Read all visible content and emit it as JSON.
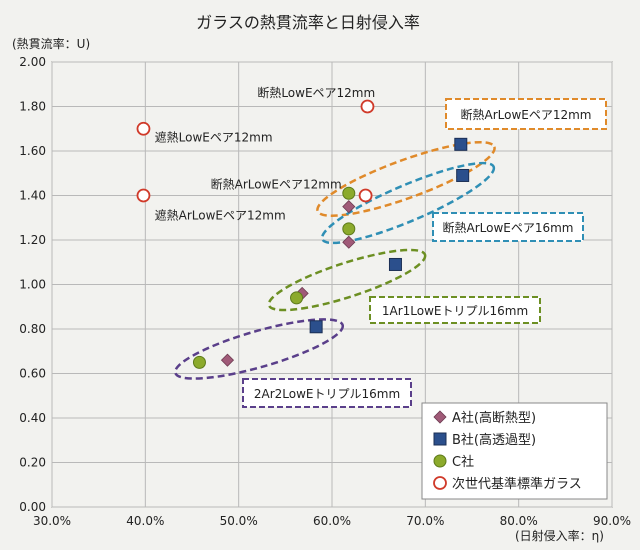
{
  "chart_data": {
    "type": "scatter",
    "title": "ガラスの熱貫流率と日射侵入率",
    "ylabel": "(熱貫流率：U)",
    "xlabel": "(日射侵入率：η)",
    "xlim": [
      0.3,
      0.9
    ],
    "ylim": [
      0.0,
      2.0
    ],
    "x_ticks": [
      "30.0%",
      "40.0%",
      "50.0%",
      "60.0%",
      "70.0%",
      "80.0%",
      "90.0%"
    ],
    "y_ticks": [
      "0.00",
      "0.20",
      "0.40",
      "0.60",
      "0.80",
      "1.00",
      "1.20",
      "1.40",
      "1.60",
      "1.80",
      "2.00"
    ],
    "grid": true,
    "legend_position": "bottom-right",
    "series": [
      {
        "name": "A社(高断熱型)",
        "marker": "diamond",
        "color": "#a05a78",
        "points": [
          [
            0.488,
            0.66
          ],
          [
            0.568,
            0.96
          ],
          [
            0.618,
            1.19
          ],
          [
            0.618,
            1.35
          ]
        ]
      },
      {
        "name": "B社(高透過型)",
        "marker": "square",
        "color": "#2b4f8c",
        "points": [
          [
            0.583,
            0.81
          ],
          [
            0.668,
            1.09
          ],
          [
            0.74,
            1.49
          ],
          [
            0.738,
            1.63
          ]
        ]
      },
      {
        "name": "C社",
        "marker": "circle",
        "color": "#8caa2c",
        "points": [
          [
            0.458,
            0.65
          ],
          [
            0.562,
            0.94
          ],
          [
            0.618,
            1.25
          ],
          [
            0.618,
            1.41
          ]
        ]
      },
      {
        "name": "次世代基準標準ガラス",
        "marker": "open-circle",
        "color": "#d03a2a",
        "points": [
          [
            0.398,
            1.7
          ],
          [
            0.398,
            1.4
          ],
          [
            0.636,
            1.4
          ],
          [
            0.638,
            1.8
          ]
        ]
      }
    ],
    "annotations": [
      {
        "text": "断熱LowEペア12mm",
        "x": 0.52,
        "y": 1.86
      },
      {
        "text": "遮熱LowEペア12mm",
        "x": 0.41,
        "y": 1.66
      },
      {
        "text": "断熱ArLowEペア12mm",
        "x": 0.47,
        "y": 1.45
      },
      {
        "text": "遮熱ArLowEペア12mm",
        "x": 0.41,
        "y": 1.31
      }
    ],
    "boxed_labels": [
      {
        "text": "断熱ArLowEペア12mm",
        "color": "#e08a2a"
      },
      {
        "text": "断熱ArLowEペア16mm",
        "color": "#2f8fb5"
      },
      {
        "text": "1Ar1LowEトリプル16mm",
        "color": "#6c8f22"
      },
      {
        "text": "2Ar2LowEトリプル16mm",
        "color": "#5a3f8a"
      }
    ]
  }
}
